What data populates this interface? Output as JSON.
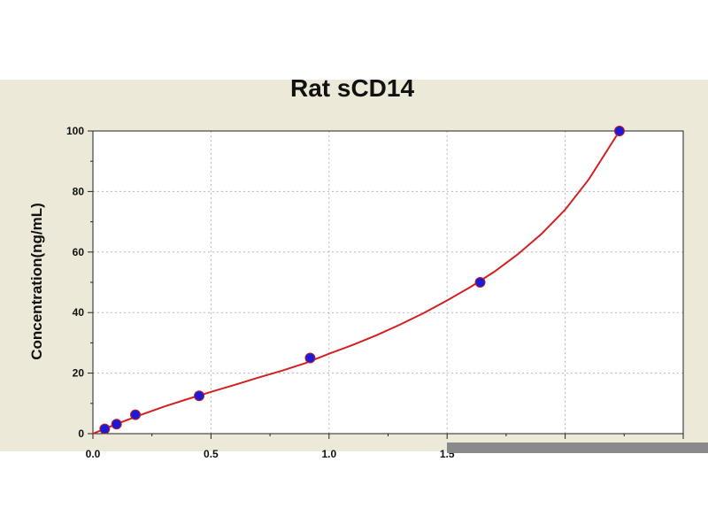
{
  "chart_data": {
    "type": "scatter",
    "title": "Rat sCD14",
    "xlabel": "",
    "ylabel": "Concentration(ng/mL)",
    "xlim": [
      0,
      2.5
    ],
    "ylim": [
      0,
      100
    ],
    "xticks": [
      "0.0",
      "0.5",
      "1.0",
      "1.5"
    ],
    "yticks": [
      "0",
      "20",
      "40",
      "60",
      "80",
      "100"
    ],
    "grid": true,
    "points": [
      {
        "x": 0.05,
        "y": 1.56
      },
      {
        "x": 0.1,
        "y": 3.13
      },
      {
        "x": 0.18,
        "y": 6.25
      },
      {
        "x": 0.45,
        "y": 12.5
      },
      {
        "x": 0.92,
        "y": 25
      },
      {
        "x": 1.64,
        "y": 50
      },
      {
        "x": 2.23,
        "y": 100
      }
    ],
    "fit_curve": {
      "x": [
        0,
        0.1,
        0.2,
        0.3,
        0.4,
        0.5,
        0.6,
        0.7,
        0.8,
        0.9,
        1.0,
        1.1,
        1.2,
        1.3,
        1.4,
        1.5,
        1.6,
        1.7,
        1.8,
        1.9,
        2.0,
        2.1,
        2.23
      ],
      "y": [
        0,
        3.2,
        6.1,
        8.9,
        11.4,
        13.8,
        16.1,
        18.5,
        20.8,
        23.3,
        26.4,
        29.3,
        32.5,
        36.0,
        39.8,
        44.0,
        48.5,
        53.5,
        59.3,
        66.0,
        74.0,
        84.0,
        100
      ]
    },
    "point_color": "#1a1ad8",
    "curve_color": "#d42020"
  }
}
